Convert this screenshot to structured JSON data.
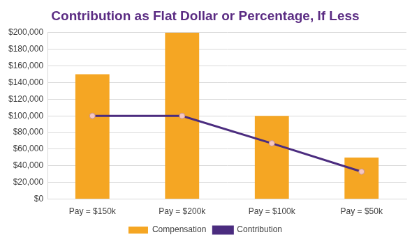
{
  "chart_data": {
    "type": "bar",
    "title": "Contribution as Flat Dollar or Percentage, If Less",
    "categories": [
      "Pay = $150k",
      "Pay = $200k",
      "Pay = $100k",
      "Pay = $50k"
    ],
    "series": [
      {
        "name": "Compensation",
        "type": "bar",
        "color": "#f5a623",
        "values": [
          150000,
          200000,
          100000,
          50000
        ]
      },
      {
        "name": "Contribution",
        "type": "line",
        "color": "#4b2c7f",
        "marker": "circle",
        "line_style": "solid",
        "values": [
          100000,
          100000,
          67000,
          33000
        ]
      }
    ],
    "ylim": [
      0,
      200000
    ],
    "yticks": [
      {
        "value": 0,
        "label": "$0"
      },
      {
        "value": 20000,
        "label": "$20,000"
      },
      {
        "value": 40000,
        "label": "$40,000"
      },
      {
        "value": 60000,
        "label": "$60,000"
      },
      {
        "value": 80000,
        "label": "$80,000"
      },
      {
        "value": 100000,
        "label": "$100,000"
      },
      {
        "value": 120000,
        "label": "$120,000"
      },
      {
        "value": 140000,
        "label": "$140,000"
      },
      {
        "value": 160000,
        "label": "$160,000"
      },
      {
        "value": 180000,
        "label": "$180,000"
      },
      {
        "value": 200000,
        "label": "$200,000"
      }
    ],
    "grid": true,
    "legend": "bottom"
  }
}
